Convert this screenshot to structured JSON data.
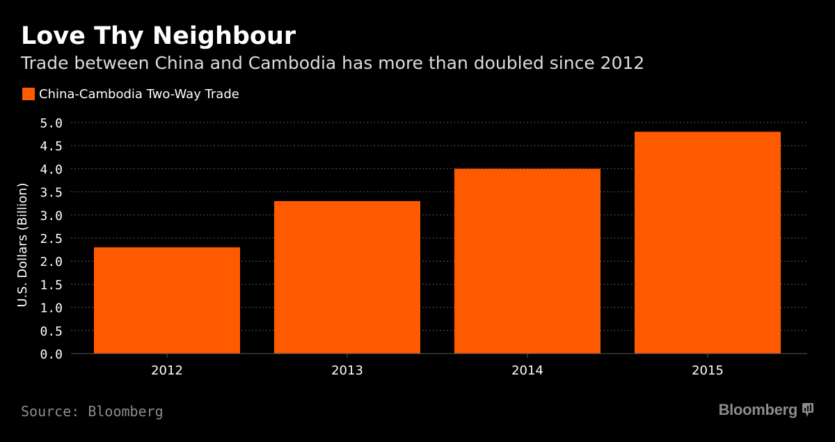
{
  "header": {
    "title": "Love Thy Neighbour",
    "subtitle": "Trade between China and Cambodia has more than doubled since 2012"
  },
  "footer": {
    "source": "Source: Bloomberg",
    "brand": "Bloomberg",
    "brand_icon": "bloomberg-terminal-icon"
  },
  "colors": {
    "background": "#000000",
    "bar": "#ff5a00",
    "grid": "#5a5a5a",
    "axis_text": "#ffffff",
    "muted": "#8c8c8c"
  },
  "chart_data": {
    "type": "bar",
    "title": "Love Thy Neighbour",
    "subtitle": "Trade between China and Cambodia has more than doubled since 2012",
    "categories": [
      "2012",
      "2013",
      "2014",
      "2015"
    ],
    "series": [
      {
        "name": "China-Cambodia Two-Way Trade",
        "values": [
          2.3,
          3.3,
          4.0,
          4.8
        ]
      }
    ],
    "xlabel": "",
    "ylabel": "U.S. Dollars (Billion)",
    "ylim": [
      0,
      5
    ],
    "yticks": [
      "0.0",
      "0.5",
      "1.0",
      "1.5",
      "2.0",
      "2.5",
      "3.0",
      "3.5",
      "4.0",
      "4.5",
      "5.0"
    ],
    "grid": true,
    "legend": "top-left"
  }
}
